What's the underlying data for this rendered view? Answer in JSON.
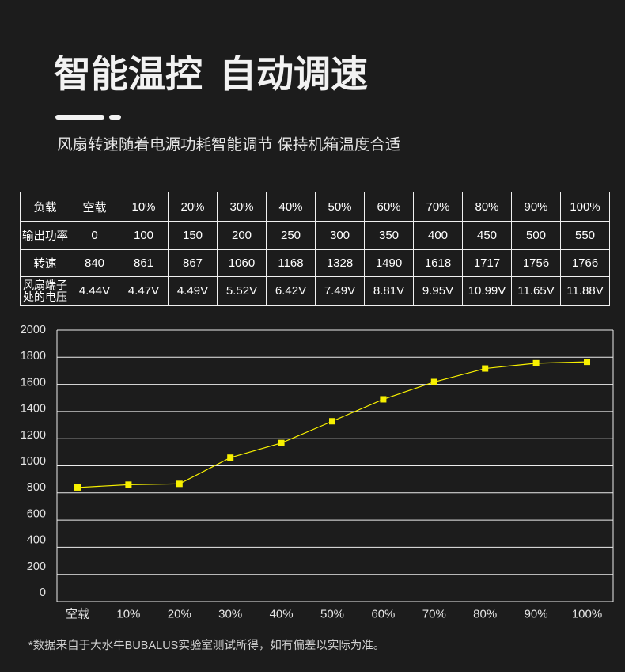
{
  "title": "智能温控 自动调速",
  "subtitle": "风扇转速随着电源功耗智能调节 保持机箱温度合适",
  "colors": {
    "background": "#1c1c1c",
    "text": "#ffffff"
  },
  "table": {
    "header_label": "负载",
    "loads": [
      "空载",
      "10%",
      "20%",
      "30%",
      "40%",
      "50%",
      "60%",
      "70%",
      "80%",
      "90%",
      "100%"
    ],
    "power_label": "输出功率",
    "power": [
      "0",
      "100",
      "150",
      "200",
      "250",
      "300",
      "350",
      "400",
      "450",
      "500",
      "550"
    ],
    "speed_label": "转速",
    "speed": [
      "840",
      "861",
      "867",
      "1060",
      "1168",
      "1328",
      "1490",
      "1618",
      "1717",
      "1756",
      "1766"
    ],
    "voltage_label_lines": [
      "风扇端子",
      "处的电压"
    ],
    "voltage": [
      "4.44V",
      "4.47V",
      "4.49V",
      "5.52V",
      "6.42V",
      "7.49V",
      "8.81V",
      "9.95V",
      "10.99V",
      "11.65V",
      "11.88V"
    ]
  },
  "chart_data": {
    "type": "line",
    "categories": [
      "空载",
      "10%",
      "20%",
      "30%",
      "40%",
      "50%",
      "60%",
      "70%",
      "80%",
      "90%",
      "100%"
    ],
    "yticks": [
      0,
      200,
      400,
      600,
      800,
      1000,
      1200,
      1400,
      1600,
      1800,
      2000
    ],
    "ylim": [
      0,
      2000
    ],
    "grid": true,
    "series": [
      {
        "values": [
          840,
          861,
          867,
          1060,
          1168,
          1328,
          1490,
          1618,
          1717,
          1756,
          1766
        ],
        "color": "#f7f000"
      }
    ]
  },
  "footnote": "*数据来自于大水牛BUBALUS实验室测试所得，如有偏差以实际为准。"
}
